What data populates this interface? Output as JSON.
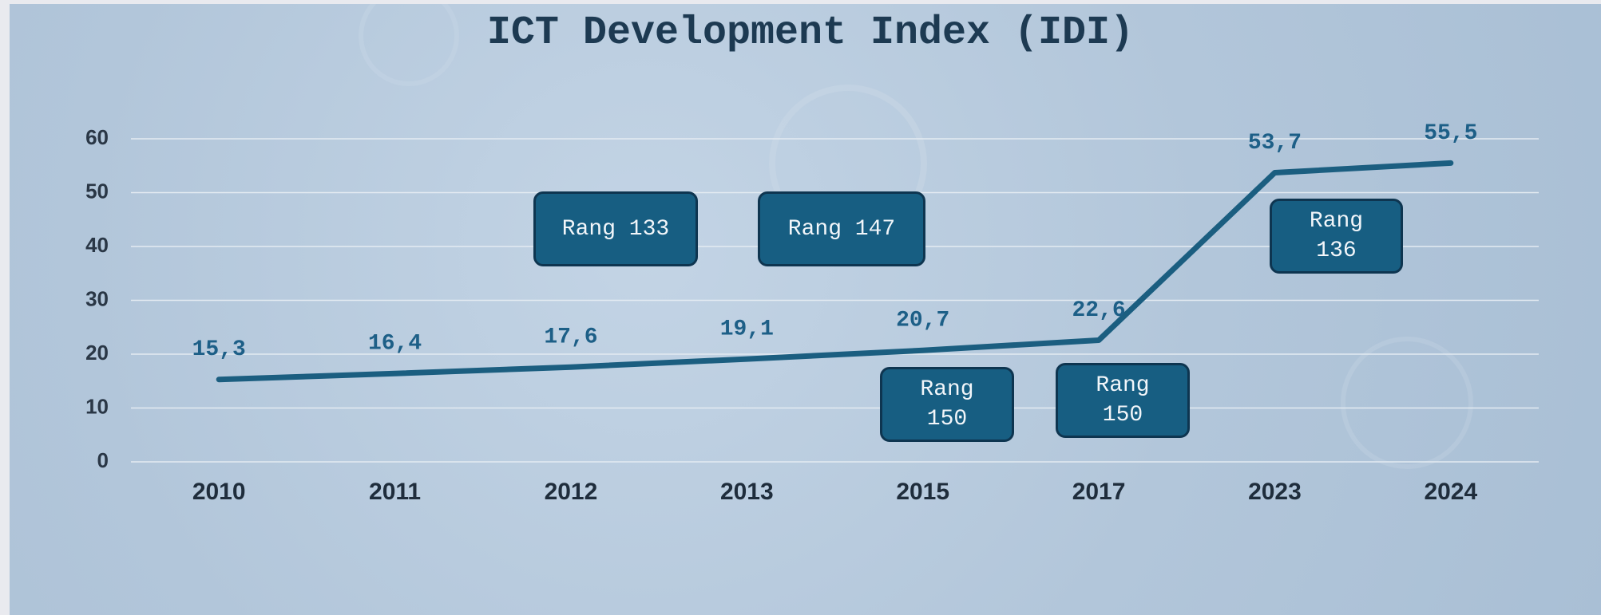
{
  "chart_data": {
    "type": "line",
    "title": "ICT Development Index (IDI)",
    "categories": [
      "2010",
      "2011",
      "2012",
      "2013",
      "2015",
      "2017",
      "2023",
      "2024"
    ],
    "values": [
      15.3,
      16.4,
      17.6,
      19.1,
      20.7,
      22.6,
      53.7,
      55.5
    ],
    "value_labels": [
      "15,3",
      "16,4",
      "17,6",
      "19,1",
      "20,7",
      "22,6",
      "53,7",
      "55,5"
    ],
    "color": "#1b5e80",
    "ylim": [
      0,
      60
    ],
    "yticks": [
      0,
      10,
      20,
      30,
      40,
      50,
      60
    ],
    "grid": true,
    "annotations": [
      "Rang 133",
      "Rang 147",
      "Rang 150",
      "Rang 150",
      "Rang 136"
    ]
  }
}
